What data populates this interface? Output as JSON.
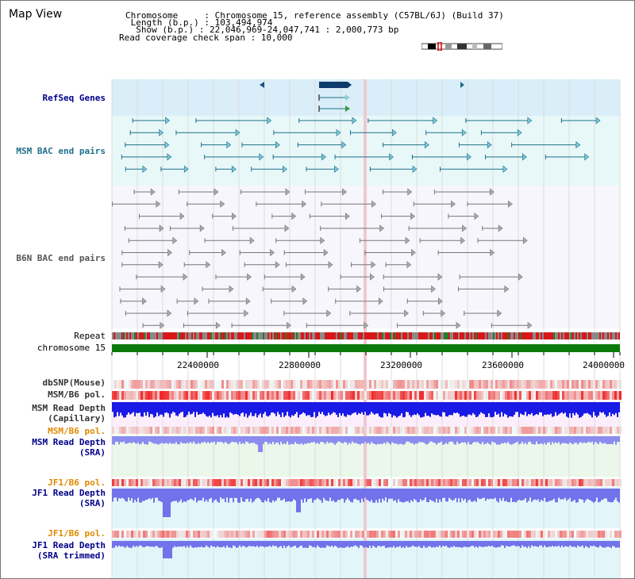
{
  "header": {
    "title": "Map View",
    "info_lines": [
      "Chromosome     : Chromosome 15, reference assembly (C57BL/6J) (Build 37)",
      " Length (b.p.) : 103,494,974",
      "  Show (b.p.) : 22,046,969-24,047,741 : 2,000,773 bp",
      "Read coverage check span : 10,000"
    ]
  },
  "tracks": {
    "refseq": "RefSeq Genes",
    "msm_bac": "MSM BAC end pairs",
    "b6n_bac": "B6N BAC end pairs",
    "repeat": "Repeat",
    "chromosome": "chromosome 15",
    "dbsnp": "dbSNP(Mouse)",
    "msm_b6_pol_1": "MSM/B6 pol.",
    "msm_depth_cap": "MSM Read Depth\n(Capillary)",
    "msm_b6_pol_2": "MSM/B6 pol.",
    "msm_depth_sra": "MSM Read Depth\n(SRA)",
    "jf1_b6_pol_1": "JF1/B6 pol.",
    "jf1_depth_sra": "JF1 Read Depth\n(SRA)",
    "jf1_b6_pol_2": "JF1/B6 pol.",
    "jf1_depth_trim": "JF1 Read Depth\n(SRA trimmed)"
  },
  "axis": {
    "ticks": [
      "22400000",
      "22800000",
      "23200000",
      "23600000",
      "24000000"
    ]
  },
  "colors": {
    "gene_blue": "#0d3b6e",
    "bac_teal": "#1f6f8b",
    "bac_grey": "#666666",
    "chromosome_green": "#0a7a0a",
    "label_blue": "#00008b",
    "label_orange": "#e08a00"
  }
}
